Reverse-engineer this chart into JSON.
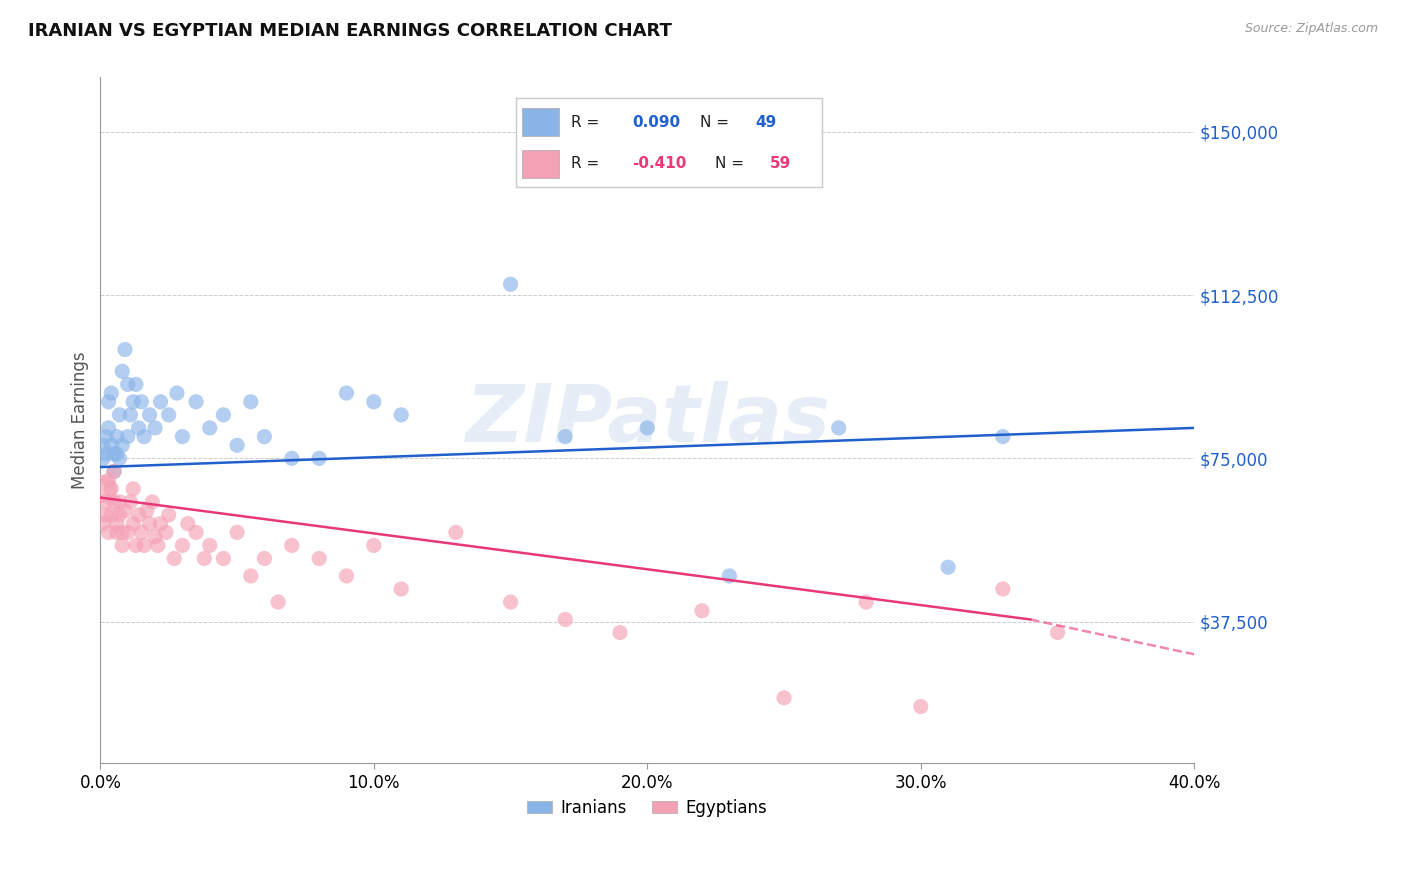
{
  "title": "IRANIAN VS EGYPTIAN MEDIAN EARNINGS CORRELATION CHART",
  "source": "Source: ZipAtlas.com",
  "ylabel": "Median Earnings",
  "watermark": "ZIPatlas",
  "legend_iranian_R": "0.090",
  "legend_iranian_N": "49",
  "legend_egyptian_R": "-0.410",
  "legend_egyptian_N": "59",
  "iranian_color": "#8ab4e8",
  "egyptian_color": "#f4a0b5",
  "iranian_line_color": "#2060cc",
  "egyptian_line_color": "#e83878",
  "ytick_labels": [
    "$37,500",
    "$75,000",
    "$112,500",
    "$150,000"
  ],
  "ytick_values": [
    37500,
    75000,
    112500,
    150000
  ],
  "ylim": [
    5000,
    162500
  ],
  "xlim": [
    0.0,
    0.4
  ],
  "iranian_x": [
    0.001,
    0.001,
    0.002,
    0.002,
    0.003,
    0.003,
    0.004,
    0.004,
    0.005,
    0.005,
    0.006,
    0.006,
    0.007,
    0.007,
    0.008,
    0.008,
    0.009,
    0.01,
    0.01,
    0.011,
    0.012,
    0.013,
    0.014,
    0.015,
    0.016,
    0.018,
    0.02,
    0.022,
    0.025,
    0.028,
    0.03,
    0.035,
    0.04,
    0.045,
    0.05,
    0.055,
    0.06,
    0.07,
    0.08,
    0.09,
    0.1,
    0.11,
    0.15,
    0.17,
    0.2,
    0.23,
    0.27,
    0.31,
    0.33
  ],
  "iranian_y": [
    75000,
    78000,
    76000,
    80000,
    88000,
    82000,
    78000,
    90000,
    76000,
    72000,
    80000,
    76000,
    75000,
    85000,
    95000,
    78000,
    100000,
    92000,
    80000,
    85000,
    88000,
    92000,
    82000,
    88000,
    80000,
    85000,
    82000,
    88000,
    85000,
    90000,
    80000,
    88000,
    82000,
    85000,
    78000,
    88000,
    80000,
    75000,
    75000,
    90000,
    88000,
    85000,
    115000,
    80000,
    82000,
    48000,
    82000,
    50000,
    80000
  ],
  "egyptian_x": [
    0.001,
    0.001,
    0.002,
    0.002,
    0.003,
    0.003,
    0.004,
    0.004,
    0.005,
    0.005,
    0.006,
    0.006,
    0.007,
    0.007,
    0.008,
    0.008,
    0.009,
    0.01,
    0.011,
    0.012,
    0.012,
    0.013,
    0.014,
    0.015,
    0.016,
    0.017,
    0.018,
    0.019,
    0.02,
    0.021,
    0.022,
    0.024,
    0.025,
    0.027,
    0.03,
    0.032,
    0.035,
    0.038,
    0.04,
    0.045,
    0.05,
    0.055,
    0.06,
    0.065,
    0.07,
    0.08,
    0.09,
    0.1,
    0.11,
    0.13,
    0.15,
    0.17,
    0.19,
    0.22,
    0.25,
    0.28,
    0.3,
    0.33,
    0.35
  ],
  "egyptian_y": [
    68000,
    60000,
    65000,
    62000,
    70000,
    58000,
    62000,
    68000,
    65000,
    72000,
    60000,
    58000,
    65000,
    62000,
    58000,
    55000,
    63000,
    58000,
    65000,
    60000,
    68000,
    55000,
    62000,
    58000,
    55000,
    63000,
    60000,
    65000,
    57000,
    55000,
    60000,
    58000,
    62000,
    52000,
    55000,
    60000,
    58000,
    52000,
    55000,
    52000,
    58000,
    48000,
    52000,
    42000,
    55000,
    52000,
    48000,
    55000,
    45000,
    58000,
    42000,
    38000,
    35000,
    40000,
    20000,
    42000,
    18000,
    45000,
    35000
  ],
  "iranian_sizes_base": 120,
  "egyptian_sizes_base": 120,
  "egyptian_large_idx": 0,
  "egyptian_large_size": 400,
  "iranian_large_idx": -1,
  "iranian_large_size": 300
}
